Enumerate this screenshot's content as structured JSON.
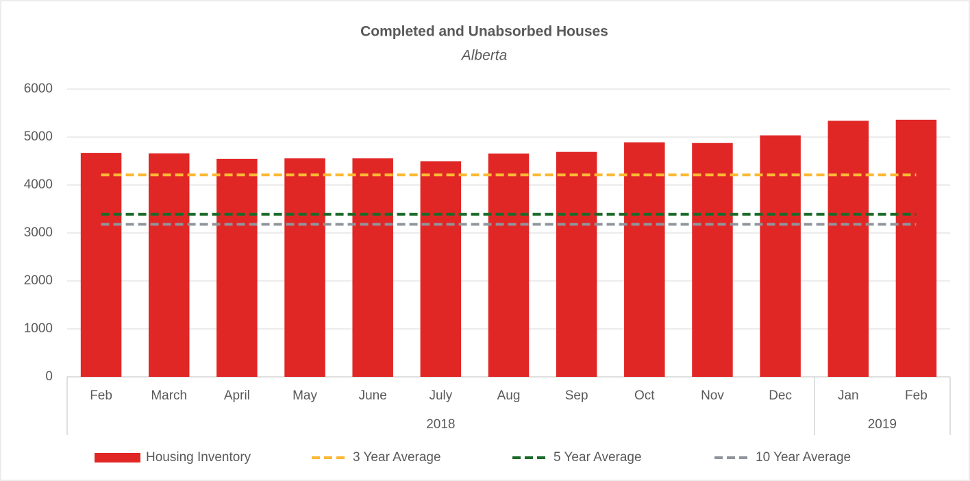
{
  "chart_data": {
    "type": "bar",
    "title": "Completed and Unabsorbed Houses",
    "subtitle": "Alberta",
    "categories": [
      "Feb",
      "March",
      "April",
      "May",
      "June",
      "July",
      "Aug",
      "Sep",
      "Oct",
      "Nov",
      "Dec",
      "Jan",
      "Feb"
    ],
    "category_groups": [
      {
        "label": "2018",
        "span": 11
      },
      {
        "label": "2019",
        "span": 2
      }
    ],
    "series": [
      {
        "name": "Housing Inventory",
        "type": "bar",
        "color": "#e02726",
        "values": [
          4670,
          4660,
          4545,
          4555,
          4555,
          4495,
          4655,
          4690,
          4890,
          4875,
          5035,
          5340,
          5360
        ]
      },
      {
        "name": "3 Year Average",
        "type": "line",
        "dashed": true,
        "color": "#fbb934",
        "values": [
          4210,
          4210,
          4210,
          4210,
          4210,
          4210,
          4210,
          4210,
          4210,
          4210,
          4210,
          4210,
          4210
        ]
      },
      {
        "name": "5 Year Average",
        "type": "line",
        "dashed": true,
        "color": "#1b6b2a",
        "values": [
          3390,
          3390,
          3390,
          3390,
          3390,
          3390,
          3390,
          3390,
          3390,
          3390,
          3390,
          3390,
          3390
        ]
      },
      {
        "name": "10 Year Average",
        "type": "line",
        "dashed": true,
        "color": "#8f959b",
        "values": [
          3180,
          3180,
          3180,
          3180,
          3180,
          3180,
          3180,
          3180,
          3180,
          3180,
          3180,
          3180,
          3180
        ]
      }
    ],
    "ylim": [
      0,
      6000
    ],
    "yticks": [
      0,
      1000,
      2000,
      3000,
      4000,
      5000,
      6000
    ],
    "grid": true,
    "legend": "bottom"
  }
}
